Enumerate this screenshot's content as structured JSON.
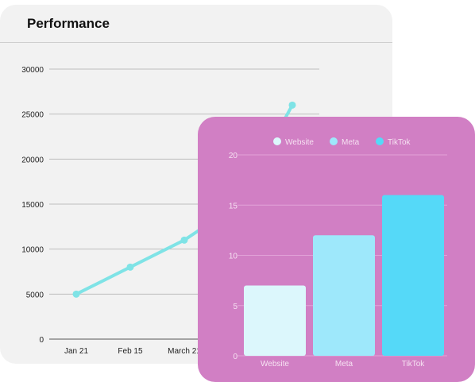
{
  "performance_card": {
    "title": "Performance"
  },
  "chart_data": [
    {
      "type": "line",
      "x": [
        "Jan 21",
        "Feb 15",
        "March 21",
        "",
        ""
      ],
      "series": [
        {
          "values": [
            5000,
            8000,
            11000,
            15000,
            26000
          ],
          "color": "#7fe3e6"
        }
      ],
      "yticks": [
        0,
        5000,
        10000,
        15000,
        20000,
        25000,
        30000
      ],
      "ylim": [
        0,
        30000
      ],
      "grid": true
    },
    {
      "type": "bar",
      "categories": [
        "Website",
        "Meta",
        "TikTok"
      ],
      "values": [
        7,
        12,
        16
      ],
      "colors": [
        "#dcf7fc",
        "#9ee8fb",
        "#55d9f8"
      ],
      "legend": [
        "Website",
        "Meta",
        "TikTok"
      ],
      "legend_position": "top",
      "yticks": [
        0,
        5,
        10,
        15,
        20
      ],
      "ylim": [
        0,
        20
      ],
      "grid": true,
      "background": "#d17fc4"
    }
  ]
}
